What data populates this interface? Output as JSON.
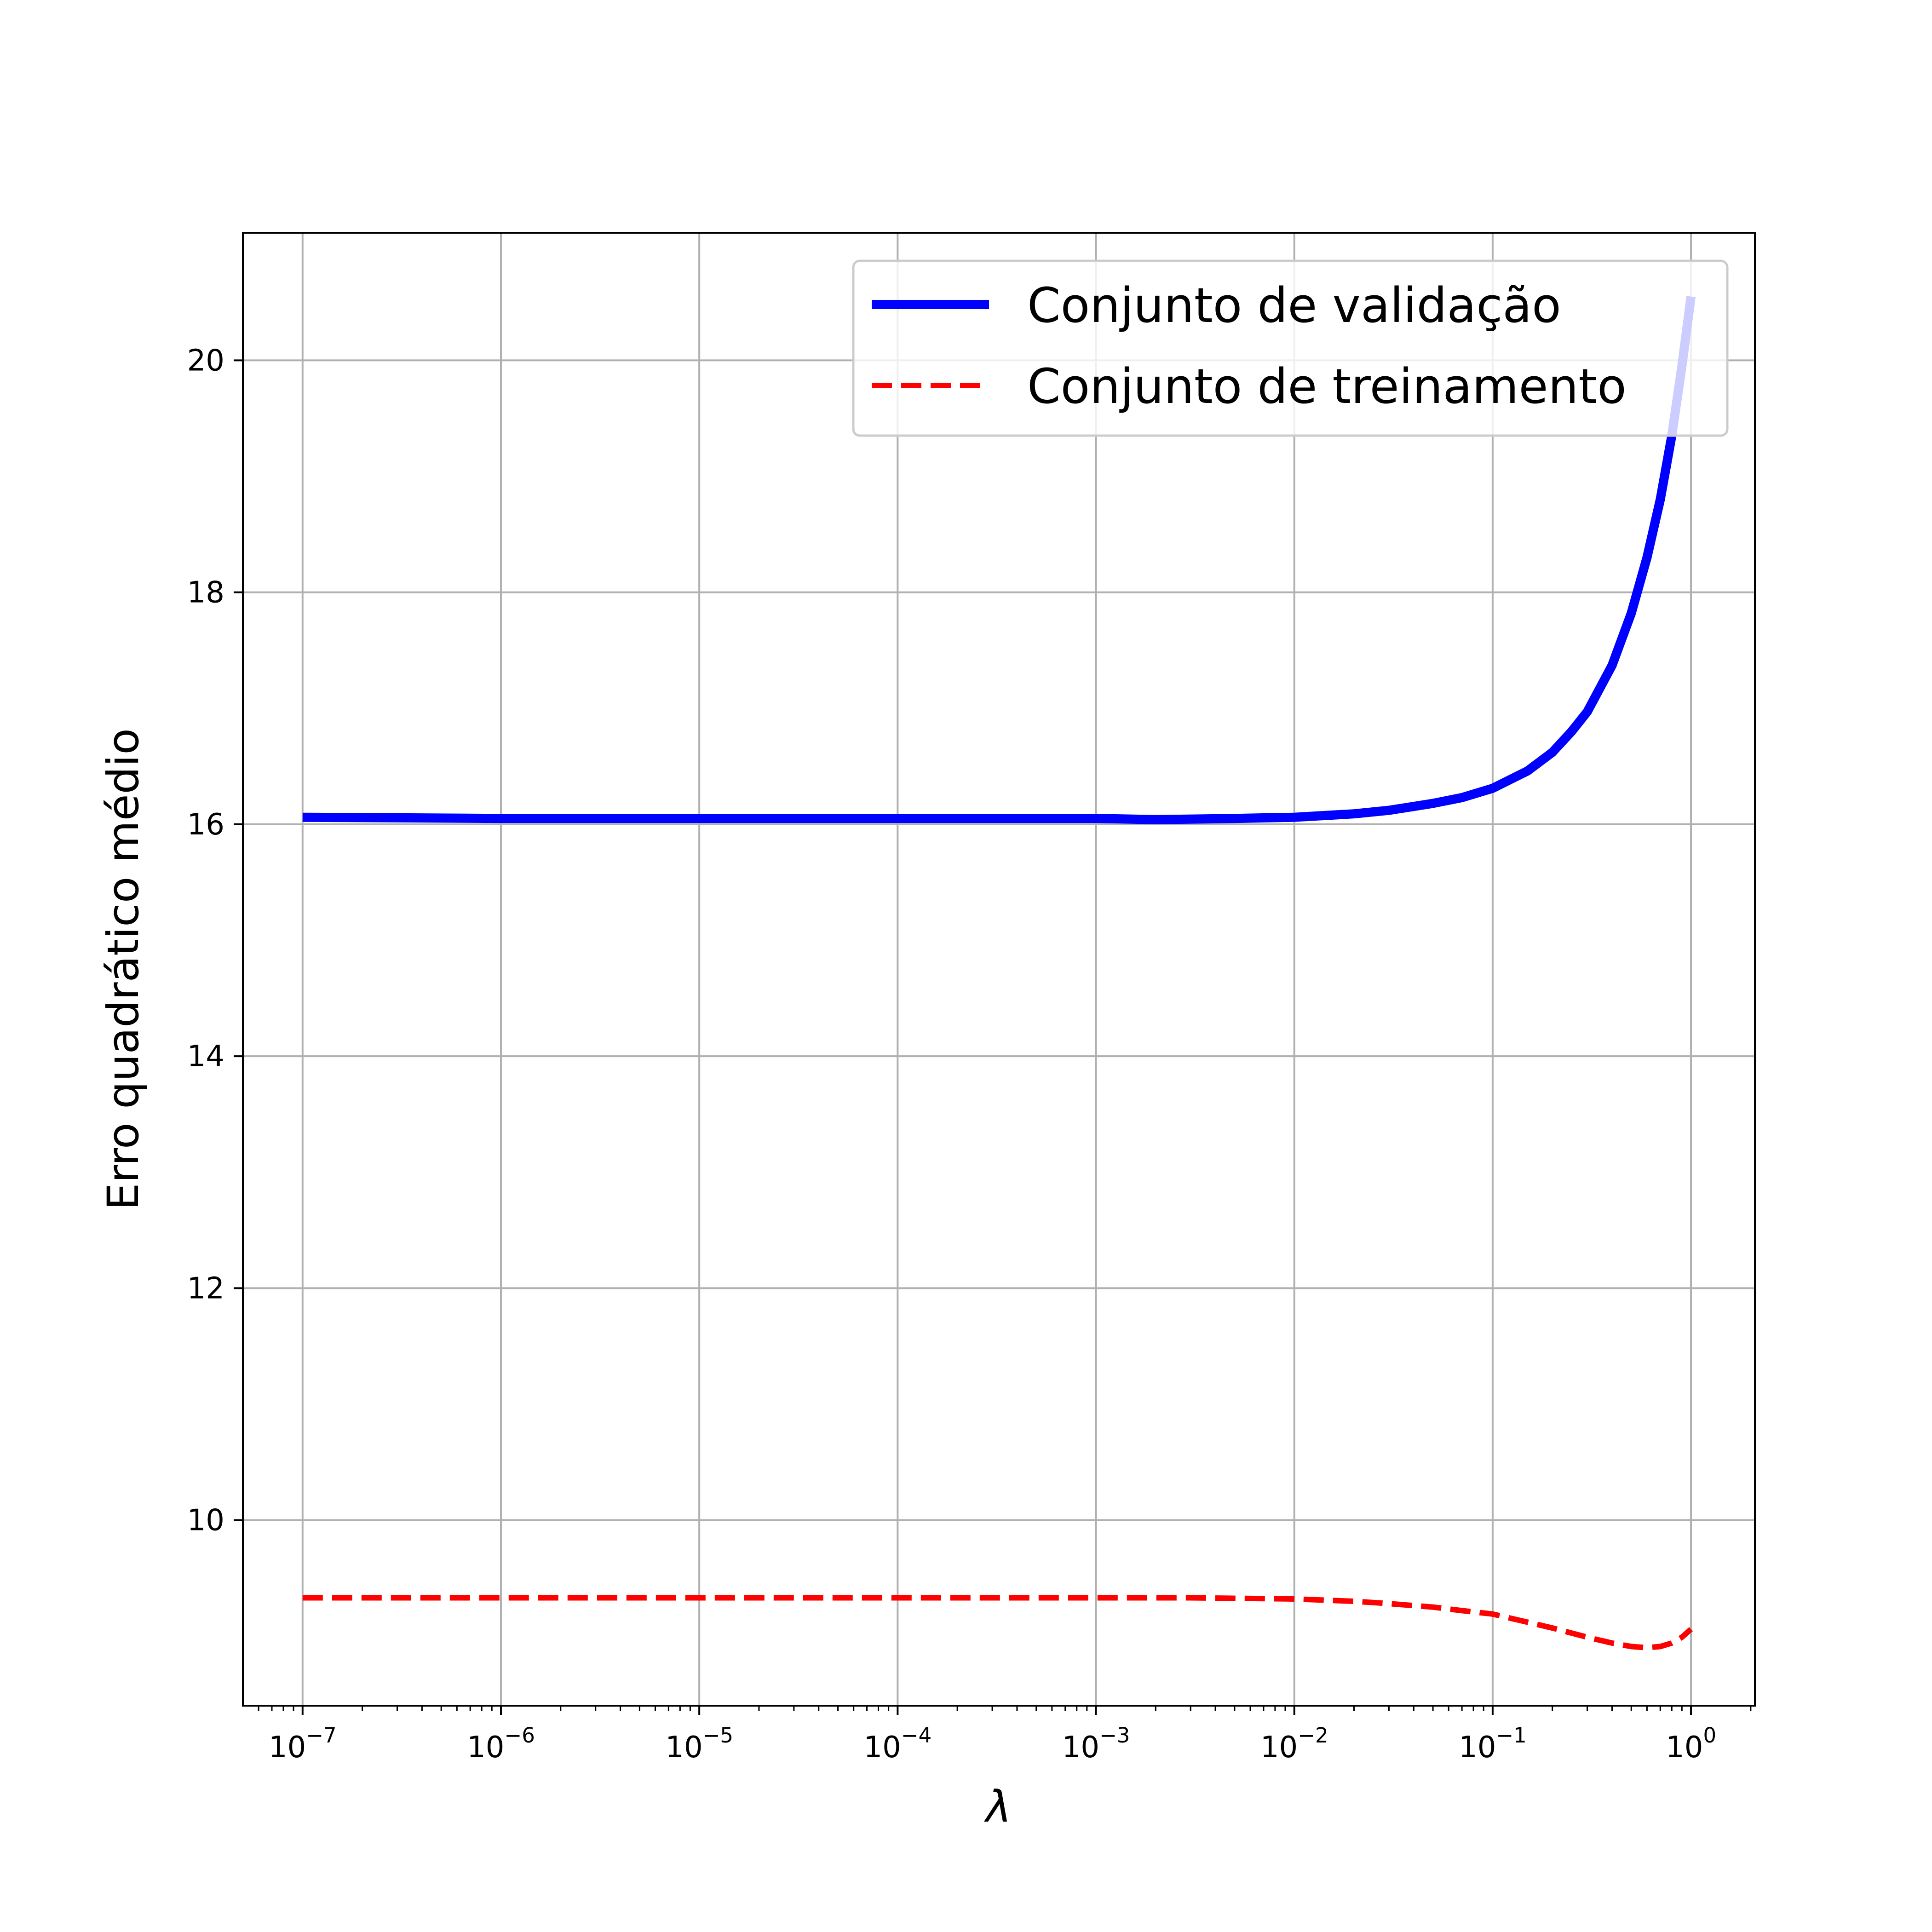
{
  "chart_data": {
    "type": "line",
    "xlabel": "λ",
    "ylabel": "Erro quadrático médio",
    "xscale": "log",
    "xlim": [
      5e-08,
      2.1
    ],
    "ylim": [
      8.4,
      21.1
    ],
    "grid": true,
    "legend_position": "top-right",
    "x_ticks": [
      {
        "base": "10",
        "exp": "−7",
        "value": 1e-07
      },
      {
        "base": "10",
        "exp": "−6",
        "value": 1e-06
      },
      {
        "base": "10",
        "exp": "−5",
        "value": 1e-05
      },
      {
        "base": "10",
        "exp": "−4",
        "value": 0.0001
      },
      {
        "base": "10",
        "exp": "−3",
        "value": 0.001
      },
      {
        "base": "10",
        "exp": "−2",
        "value": 0.01
      },
      {
        "base": "10",
        "exp": "−1",
        "value": 0.1
      },
      {
        "base": "10",
        "exp": "0",
        "value": 1
      }
    ],
    "y_ticks": [
      10,
      12,
      14,
      16,
      18,
      20
    ],
    "series": [
      {
        "name": "Conjunto de validação",
        "color": "#0000ff",
        "style": "solid",
        "x": [
          1e-07,
          1e-06,
          1e-05,
          0.0001,
          0.001,
          0.002,
          0.005,
          0.01,
          0.02,
          0.03,
          0.05,
          0.07,
          0.1,
          0.15,
          0.2,
          0.25,
          0.3,
          0.4,
          0.5,
          0.6,
          0.7,
          0.8,
          0.9,
          1.0
        ],
        "y": [
          16.06,
          16.05,
          16.05,
          16.05,
          16.05,
          16.04,
          16.05,
          16.06,
          16.09,
          16.12,
          16.18,
          16.23,
          16.31,
          16.46,
          16.62,
          16.8,
          16.97,
          17.37,
          17.82,
          18.3,
          18.8,
          19.35,
          19.95,
          20.55
        ]
      },
      {
        "name": "Conjunto de treinamento",
        "color": "#ff0000",
        "style": "dashed",
        "x": [
          1e-07,
          1e-06,
          1e-05,
          0.0001,
          0.001,
          0.003,
          0.01,
          0.02,
          0.03,
          0.05,
          0.07,
          0.1,
          0.15,
          0.2,
          0.3,
          0.4,
          0.5,
          0.6,
          0.7,
          0.8,
          0.9,
          1.0
        ],
        "y": [
          9.33,
          9.33,
          9.33,
          9.33,
          9.33,
          9.33,
          9.32,
          9.3,
          9.28,
          9.25,
          9.22,
          9.19,
          9.12,
          9.07,
          8.99,
          8.94,
          8.91,
          8.9,
          8.91,
          8.94,
          8.99,
          9.06
        ]
      }
    ]
  }
}
